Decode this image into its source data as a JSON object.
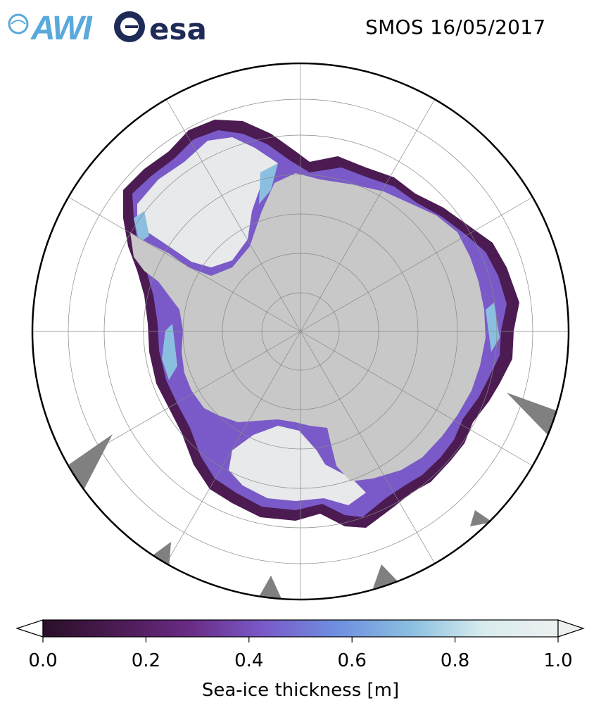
{
  "header": {
    "logo_awi_text": "AWI",
    "logo_esa_text": "esa",
    "title": "SMOS 16/05/2017"
  },
  "map": {
    "projection": "south-polar-stereographic",
    "view": "Antarctica and Southern Ocean sea ice",
    "colors": {
      "land": "#c8c8c8",
      "masked": "#808080",
      "thick_ice": "#e8e9ea",
      "thin_ice": "#4a1c4e",
      "boundary": "#000000",
      "grid": "#888888"
    }
  },
  "colorbar": {
    "title": "Sea-ice thickness [m]",
    "min": 0.0,
    "max": 1.0,
    "tick_labels": [
      "0.0",
      "0.2",
      "0.4",
      "0.6",
      "0.8",
      "1.0"
    ],
    "extend": "both",
    "colormap": [
      "#2a0f2a",
      "#4b1b52",
      "#6a2c85",
      "#7a5ac8",
      "#6f8fe0",
      "#8bbfe0",
      "#d8ecee",
      "#eef0f0"
    ]
  }
}
